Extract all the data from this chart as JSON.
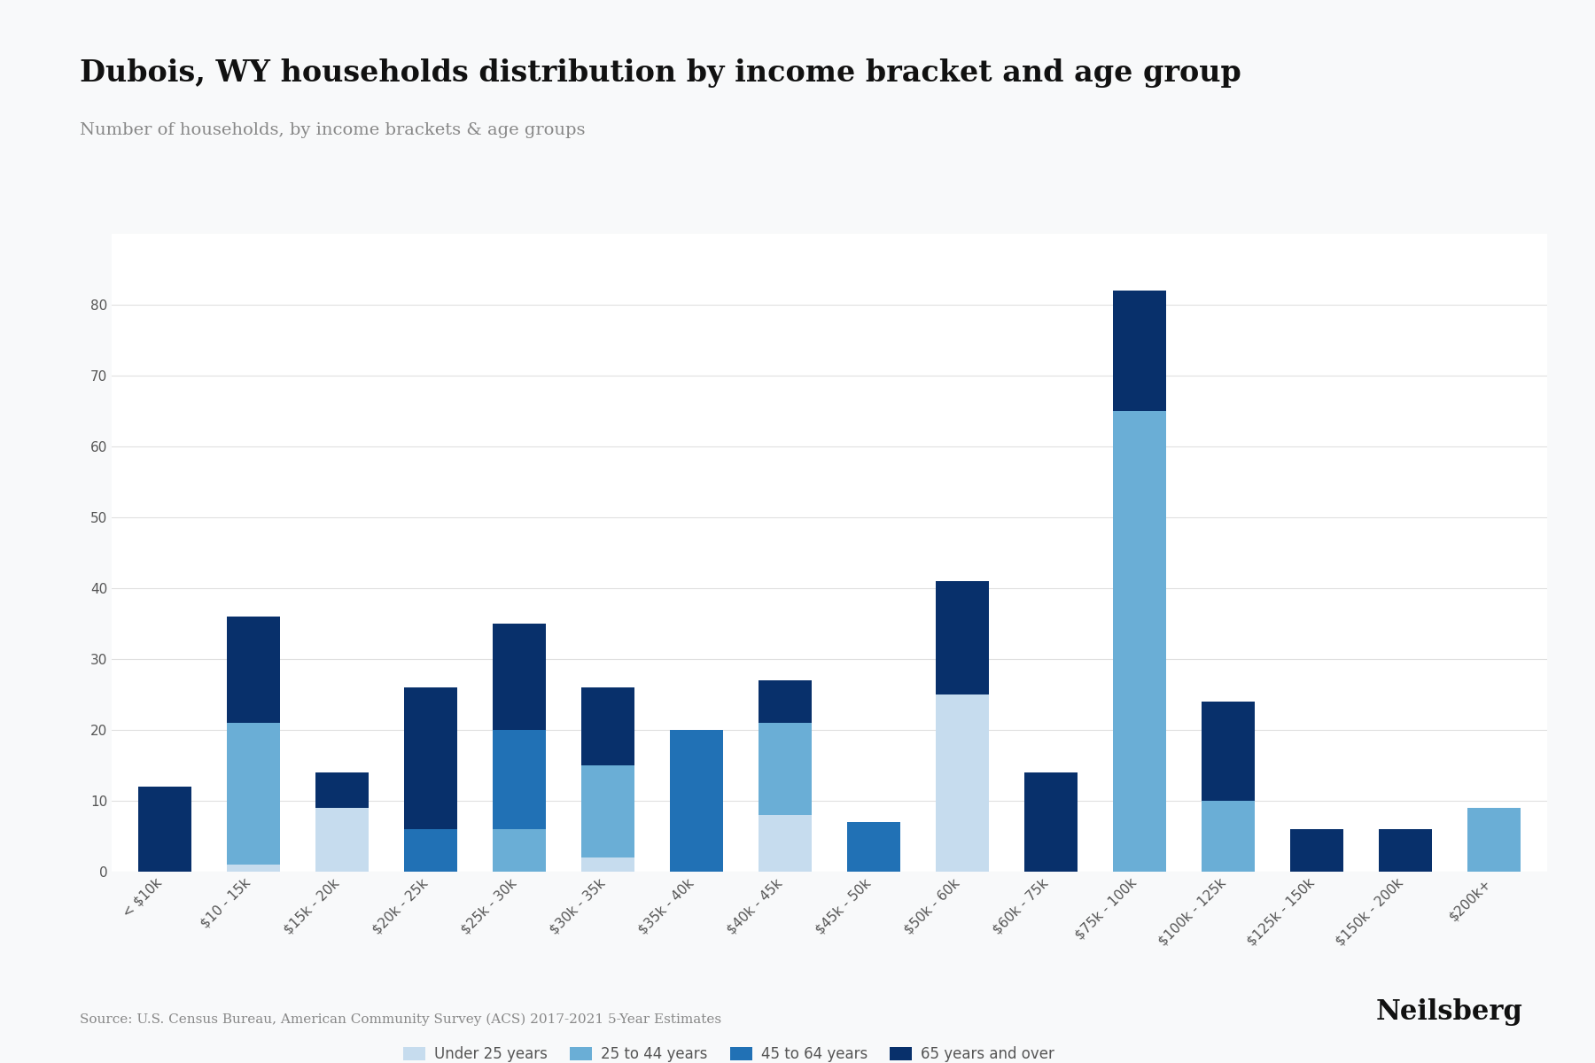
{
  "title": "Dubois, WY households distribution by income bracket and age group",
  "subtitle": "Number of households, by income brackets & age groups",
  "source": "Source: U.S. Census Bureau, American Community Survey (ACS) 2017-2021 5-Year Estimates",
  "categories": [
    "< $10k",
    "$10 - 15k",
    "$15k - 20k",
    "$20k - 25k",
    "$25k - 30k",
    "$30k - 35k",
    "$35k - 40k",
    "$40k - 45k",
    "$45k - 50k",
    "$50k - 60k",
    "$60k - 75k",
    "$75k - 100k",
    "$100k - 125k",
    "$125k - 150k",
    "$150k - 200k",
    "$200k+"
  ],
  "series": {
    "Under 25 years": [
      0,
      1,
      9,
      0,
      0,
      2,
      0,
      8,
      0,
      25,
      0,
      0,
      0,
      0,
      0,
      0
    ],
    "25 to 44 years": [
      0,
      20,
      0,
      0,
      6,
      13,
      0,
      13,
      0,
      0,
      0,
      65,
      10,
      0,
      0,
      9
    ],
    "45 to 64 years": [
      0,
      0,
      0,
      6,
      14,
      0,
      20,
      0,
      7,
      0,
      0,
      0,
      0,
      0,
      0,
      0
    ],
    "65 years and over": [
      12,
      15,
      5,
      20,
      15,
      11,
      0,
      6,
      0,
      16,
      14,
      17,
      14,
      6,
      6,
      0
    ]
  },
  "colors": {
    "Under 25 years": "#c6dcee",
    "25 to 44 years": "#6aaed6",
    "45 to 64 years": "#2171b5",
    "65 years and over": "#08306b"
  },
  "ylim": [
    0,
    90
  ],
  "yticks": [
    0,
    10,
    20,
    30,
    40,
    50,
    60,
    70,
    80
  ],
  "background_color": "#f8f9fa",
  "plot_bg_color": "#ffffff",
  "grid_color": "#e0e0e0",
  "title_fontsize": 24,
  "subtitle_fontsize": 14,
  "tick_fontsize": 11,
  "source_fontsize": 11,
  "neilsberg_fontsize": 22,
  "legend_fontsize": 12
}
